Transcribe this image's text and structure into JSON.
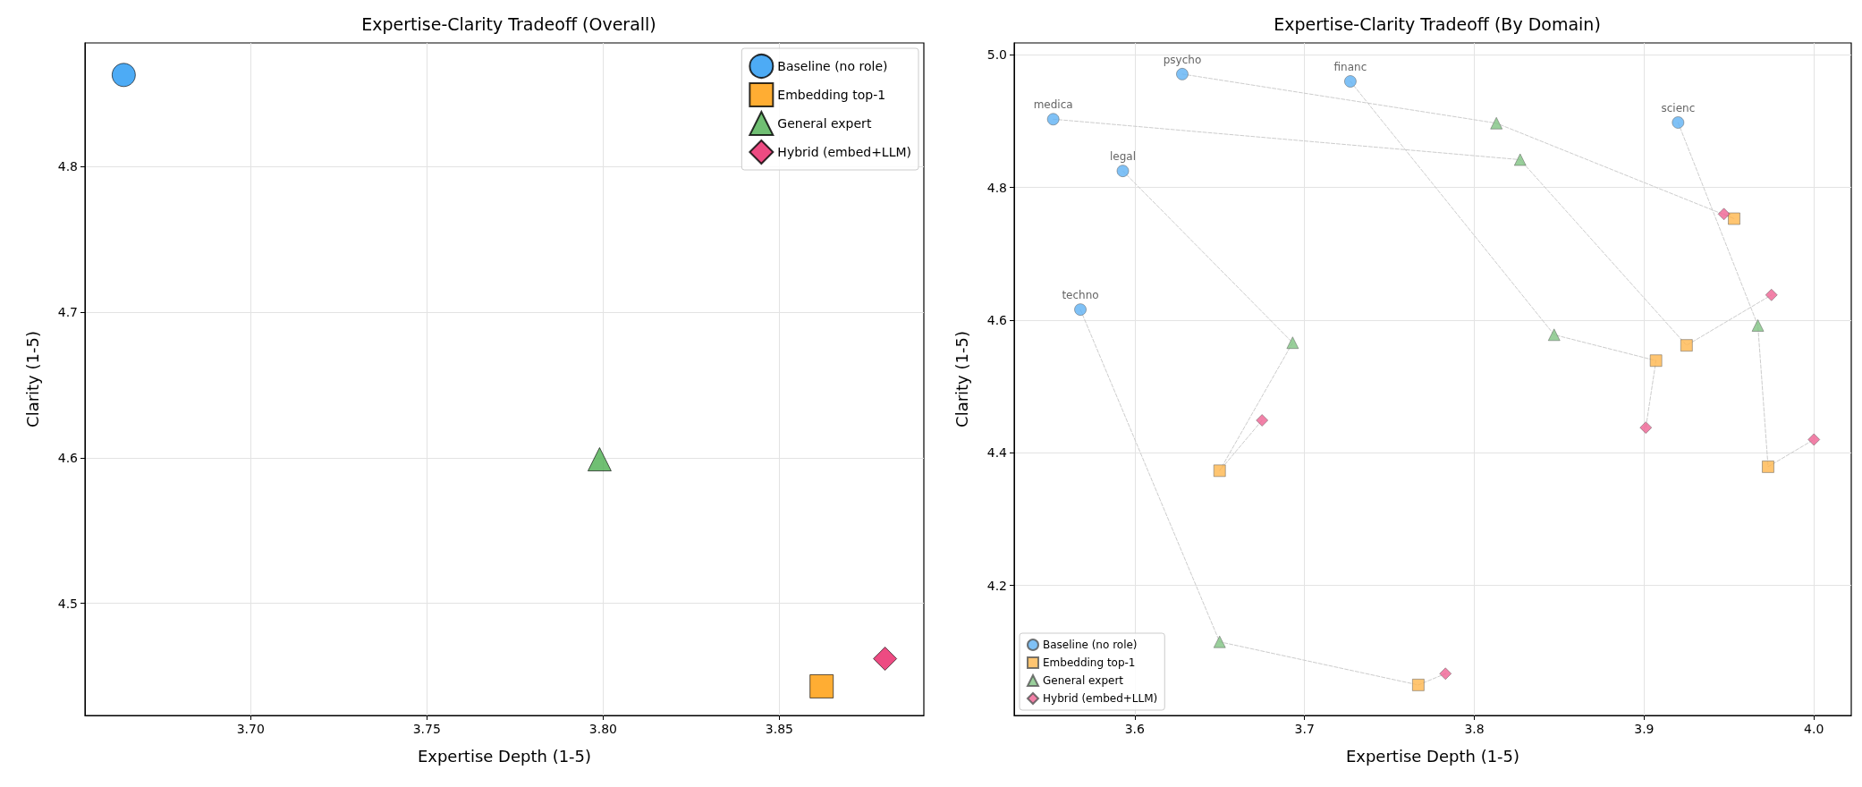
{
  "chart_data": [
    {
      "type": "scatter",
      "title": "Expertise-Clarity Tradeoff (Overall)",
      "xlabel": "Expertise Depth (1-5)",
      "ylabel": "Clarity (1-5)",
      "xlim": [
        3.653,
        3.891
      ],
      "ylim": [
        4.423,
        4.885
      ],
      "xticks": [
        {
          "value": 3.7,
          "label": "3.70"
        },
        {
          "value": 3.75,
          "label": "3.75"
        },
        {
          "value": 3.8,
          "label": "3.80"
        },
        {
          "value": 3.85,
          "label": "3.85"
        }
      ],
      "yticks": [
        4.5,
        4.6,
        4.7,
        4.8
      ],
      "grid": true,
      "legend": "top right",
      "series": [
        {
          "name": "Baseline (no role)",
          "color": "#2196f3",
          "marker": "circle",
          "x": [
            3.664
          ],
          "values": [
            4.863
          ]
        },
        {
          "name": "Embedding top-1",
          "color": "#ff9800",
          "marker": "square",
          "x": [
            3.862
          ],
          "values": [
            4.443
          ]
        },
        {
          "name": "General expert",
          "color": "#4caf50",
          "marker": "triangle",
          "x": [
            3.799
          ],
          "values": [
            4.599
          ]
        },
        {
          "name": "Hybrid (embed+LLM)",
          "color": "#e91e63",
          "marker": "diamond",
          "x": [
            3.88
          ],
          "values": [
            4.462
          ]
        }
      ]
    },
    {
      "type": "scatter",
      "title": "Expertise-Clarity Tradeoff (By Domain)",
      "xlabel": "Expertise Depth (1-5)",
      "ylabel": "Clarity (1-5)",
      "xlim": [
        3.529,
        4.022
      ],
      "ylim": [
        4.004,
        5.018
      ],
      "xticks": [
        3.6,
        3.7,
        3.8,
        3.9,
        {
          "value": 4.0,
          "label": "4.0"
        }
      ],
      "yticks": [
        4.2,
        4.4,
        4.6,
        4.8,
        {
          "value": 5.0,
          "label": "5.0"
        }
      ],
      "grid": true,
      "legend": "bottom left",
      "annotations": [
        {
          "text": "financ",
          "x": 3.727,
          "y": 4.96
        },
        {
          "text": "legal",
          "x": 3.593,
          "y": 4.825
        },
        {
          "text": "medica",
          "x": 3.552,
          "y": 4.903
        },
        {
          "text": "psycho",
          "x": 3.628,
          "y": 4.971
        },
        {
          "text": "scienc",
          "x": 3.92,
          "y": 4.898
        },
        {
          "text": "techno",
          "x": 3.568,
          "y": 4.616
        }
      ],
      "series": [
        {
          "type": "line",
          "color": "#cccccc",
          "line_style": "dashed",
          "marker": "none",
          "x": [
            3.727,
            3.847,
            3.907,
            3.901
          ],
          "values": [
            4.96,
            4.578,
            4.539,
            4.438
          ]
        },
        {
          "type": "line",
          "color": "#cccccc",
          "line_style": "dashed",
          "marker": "none",
          "x": [
            3.593,
            3.693,
            3.65,
            3.675
          ],
          "values": [
            4.825,
            4.566,
            4.373,
            4.449
          ]
        },
        {
          "type": "line",
          "color": "#cccccc",
          "line_style": "dashed",
          "marker": "none",
          "x": [
            3.552,
            3.827,
            3.925,
            3.975
          ],
          "values": [
            4.903,
            4.842,
            4.562,
            4.638
          ]
        },
        {
          "type": "line",
          "color": "#cccccc",
          "line_style": "dashed",
          "marker": "none",
          "x": [
            3.628,
            3.813,
            3.953,
            3.947
          ],
          "values": [
            4.971,
            4.897,
            4.753,
            4.76
          ]
        },
        {
          "type": "line",
          "color": "#cccccc",
          "line_style": "dashed",
          "marker": "none",
          "x": [
            3.92,
            3.967,
            3.973,
            4.0
          ],
          "values": [
            4.898,
            4.592,
            4.379,
            4.42
          ]
        },
        {
          "type": "line",
          "color": "#cccccc",
          "line_style": "dashed",
          "marker": "none",
          "x": [
            3.568,
            3.65,
            3.767,
            3.783
          ],
          "values": [
            4.616,
            4.115,
            4.05,
            4.067
          ]
        },
        {
          "name": "Baseline (no role)",
          "color": "#5fb2f4",
          "marker": "circle",
          "x": [
            3.727,
            3.593,
            3.552,
            3.628,
            3.92,
            3.568
          ],
          "values": [
            4.96,
            4.825,
            4.903,
            4.971,
            4.898,
            4.616
          ]
        },
        {
          "name": "Embedding top-1",
          "color": "#ffb64d",
          "marker": "square",
          "x": [
            3.907,
            3.65,
            3.925,
            3.953,
            3.973,
            3.767
          ],
          "values": [
            4.539,
            4.373,
            4.562,
            4.753,
            4.379,
            4.05
          ]
        },
        {
          "name": "General expert",
          "color": "#7fc382",
          "marker": "triangle",
          "x": [
            3.847,
            3.693,
            3.827,
            3.813,
            3.967,
            3.65
          ],
          "values": [
            4.578,
            4.566,
            4.842,
            4.897,
            4.592,
            4.115
          ]
        },
        {
          "name": "Hybrid (embed+LLM)",
          "color": "#ef6192",
          "marker": "diamond",
          "x": [
            3.901,
            3.675,
            3.975,
            3.947,
            4.0,
            3.783
          ],
          "values": [
            4.438,
            4.449,
            4.638,
            4.76,
            4.42,
            4.067
          ]
        }
      ]
    }
  ]
}
